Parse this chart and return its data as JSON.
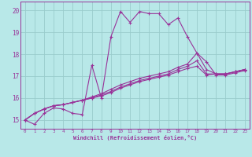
{
  "xlabel": "Windchill (Refroidissement éolien,°C)",
  "xlim": [
    -0.5,
    23.5
  ],
  "ylim": [
    14.6,
    20.4
  ],
  "yticks": [
    15,
    16,
    17,
    18,
    19,
    20
  ],
  "xticks": [
    0,
    1,
    2,
    3,
    4,
    5,
    6,
    7,
    8,
    9,
    10,
    11,
    12,
    13,
    14,
    15,
    16,
    17,
    18,
    19,
    20,
    21,
    22,
    23
  ],
  "bg_color": "#b8e8e8",
  "line_color": "#993399",
  "grid_color": "#99cccc",
  "line0": [
    15.0,
    14.8,
    15.3,
    15.55,
    15.5,
    15.3,
    15.25,
    17.5,
    16.0,
    18.8,
    19.95,
    19.45,
    19.95,
    19.85,
    19.85,
    19.35,
    19.65,
    18.8,
    18.05,
    17.65,
    17.05,
    17.05,
    17.15,
    17.25
  ],
  "line1": [
    15.0,
    15.3,
    15.5,
    15.65,
    15.7,
    15.8,
    15.9,
    16.05,
    16.2,
    16.4,
    16.6,
    16.75,
    16.9,
    17.0,
    17.1,
    17.2,
    17.4,
    17.55,
    18.05,
    17.3,
    17.1,
    17.1,
    17.2,
    17.3
  ],
  "line2": [
    15.0,
    15.3,
    15.5,
    15.65,
    15.7,
    15.8,
    15.9,
    16.0,
    16.15,
    16.3,
    16.5,
    16.65,
    16.8,
    16.9,
    17.0,
    17.1,
    17.3,
    17.45,
    17.7,
    17.1,
    17.1,
    17.1,
    17.2,
    17.3
  ],
  "line3": [
    15.0,
    15.3,
    15.5,
    15.65,
    15.7,
    15.8,
    15.9,
    16.0,
    16.1,
    16.25,
    16.45,
    16.6,
    16.75,
    16.85,
    16.95,
    17.05,
    17.2,
    17.35,
    17.45,
    17.05,
    17.1,
    17.1,
    17.2,
    17.3
  ]
}
